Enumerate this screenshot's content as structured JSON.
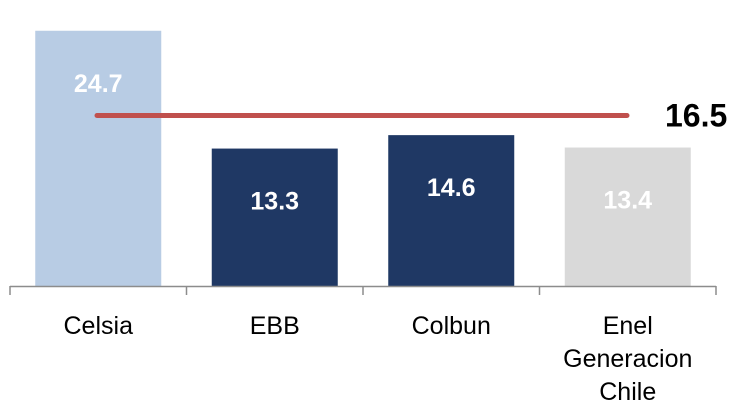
{
  "chart_data": {
    "type": "bar",
    "categories": [
      "Celsia",
      "EBB",
      "Colbun",
      "Enel Generacion Chile"
    ],
    "category_lines": [
      [
        "Celsia"
      ],
      [
        "EBB"
      ],
      [
        "Colbun"
      ],
      [
        "Enel",
        "Generacion",
        "Chile"
      ]
    ],
    "values": [
      24.7,
      13.3,
      14.6,
      13.4
    ],
    "value_labels": [
      "24.7",
      "13.3",
      "14.6",
      "13.4"
    ],
    "bar_colors": [
      "#b8cce4",
      "#1f3864",
      "#1f3864",
      "#d9d9d9"
    ],
    "label_colors": [
      "#ffffff",
      "#ffffff",
      "#ffffff",
      "#ffffff"
    ],
    "reference_line": {
      "value": 16.5,
      "label": "16.5",
      "color": "#c0504d"
    },
    "ylim": [
      0,
      27
    ],
    "grid": false,
    "legend": "none",
    "title": "",
    "xlabel": "",
    "ylabel": ""
  }
}
